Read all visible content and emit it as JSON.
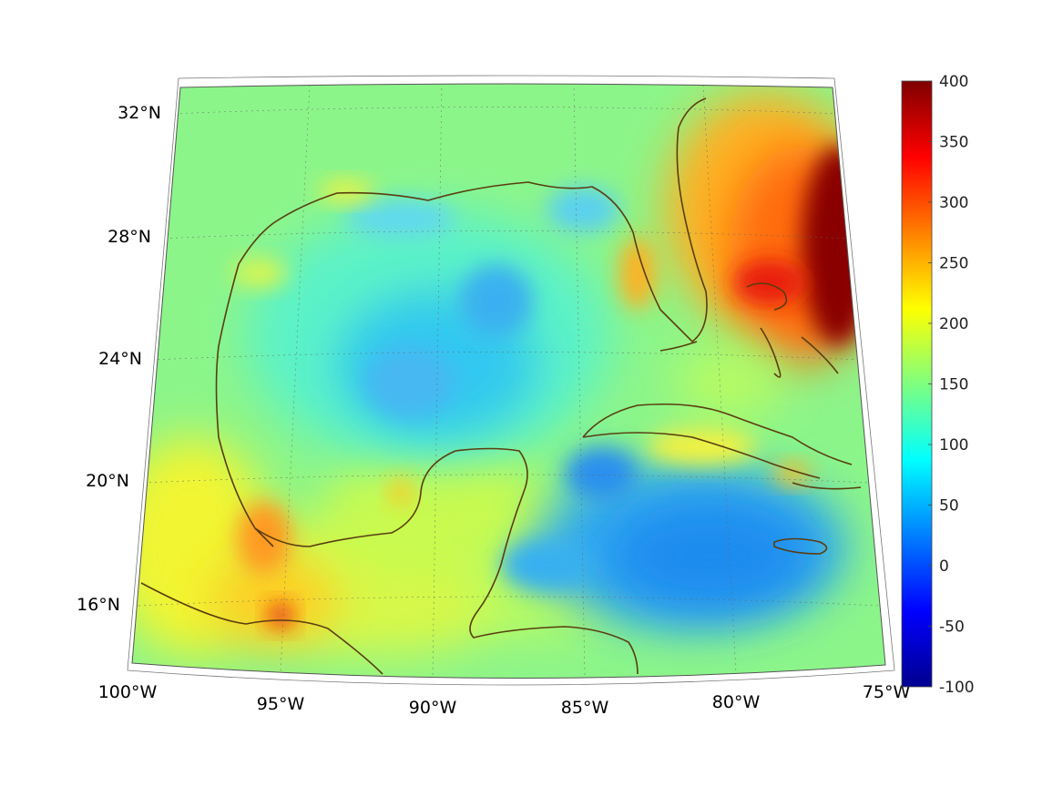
{
  "map": {
    "projection": "conic",
    "field_colormap": "jet",
    "coastline_color": "#5a3d10",
    "grid": true,
    "lat_ticks": [
      {
        "value": 32,
        "label": "32°N"
      },
      {
        "value": 28,
        "label": "28°N"
      },
      {
        "value": 24,
        "label": "24°N"
      },
      {
        "value": 20,
        "label": "20°N"
      },
      {
        "value": 16,
        "label": "16°N"
      }
    ],
    "lon_ticks": [
      {
        "value": -100,
        "label": "100°W"
      },
      {
        "value": -95,
        "label": "95°W"
      },
      {
        "value": -90,
        "label": "90°W"
      },
      {
        "value": -85,
        "label": "85°W"
      },
      {
        "value": -80,
        "label": "80°W"
      },
      {
        "value": -75,
        "label": "75°W"
      }
    ],
    "extent": {
      "lon_min": -100,
      "lon_max": -75,
      "lat_min": 14,
      "lat_max": 32.5
    }
  },
  "colorbar": {
    "min": -100,
    "max": 400,
    "ticks": [
      "400",
      "350",
      "300",
      "250",
      "200",
      "150",
      "100",
      "50",
      "0",
      "-50",
      "-100"
    ]
  }
}
